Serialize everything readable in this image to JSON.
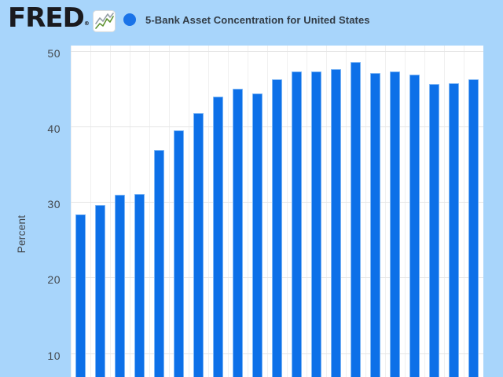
{
  "header": {
    "logo_text": "FRED",
    "logo_registered_mark": "®",
    "legend_series_label": "5-Bank Asset Concentration for United States"
  },
  "y_axis": {
    "title": "Percent",
    "tick_labels": [
      "50",
      "40",
      "30",
      "20",
      "10"
    ]
  },
  "icons": {
    "fred_logo_chart_icon": "line-chart-icon",
    "legend_series_dot": "series-color-dot"
  },
  "colors": {
    "page_background": "#a8d5fb",
    "plot_background": "#ffffff",
    "bar_fill": "#0d70e8",
    "bar_border": "#7ab4f5",
    "legend_dot": "#1a73e8",
    "logo_text": "#1a1a1e",
    "header_text": "#323c46",
    "axis_text": "#43484d",
    "gridline_horizontal": "#e5e5e5",
    "gridline_vertical": "#f0f0f0",
    "logo_icon_line_gray": "#97a1a9",
    "logo_icon_line_green": "#5f9331"
  },
  "chart_data": {
    "type": "bar",
    "title": "5-Bank Asset Concentration for United States",
    "ylabel": "Percent",
    "xlabel": "",
    "y_ticks": [
      10,
      20,
      30,
      40,
      50
    ],
    "ylim_visible": [
      6.5,
      50.7
    ],
    "grid": true,
    "legend_position": "top",
    "x_axis_labels_cropped_out": true,
    "num_bars": 21,
    "values": [
      28.3,
      29.6,
      30.9,
      31.1,
      36.9,
      39.5,
      41.7,
      43.9,
      45.0,
      44.3,
      46.2,
      47.3,
      47.2,
      47.6,
      48.5,
      47.0,
      47.2,
      46.8,
      45.6,
      45.7,
      46.2
    ]
  }
}
